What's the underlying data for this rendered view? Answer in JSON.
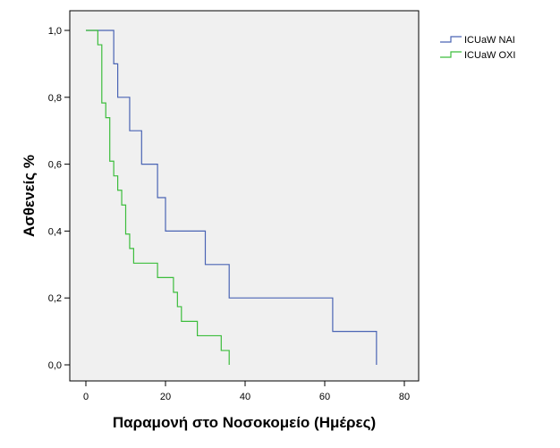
{
  "chart_data": {
    "type": "line",
    "step": true,
    "title": "",
    "xlabel": "Παραμονή στο Νοσοκομείο (Ημέρες)",
    "ylabel": "Ασθενείς %",
    "xlim": [
      0,
      80
    ],
    "ylim": [
      0,
      1
    ],
    "xticks": [
      0,
      20,
      40,
      60,
      80
    ],
    "xtick_labels": [
      "0",
      "20",
      "40",
      "60",
      "80"
    ],
    "yticks": [
      0.0,
      0.2,
      0.4,
      0.6,
      0.8,
      1.0
    ],
    "ytick_labels": [
      "0,0",
      "0,2",
      "0,4",
      "0,6",
      "0,8",
      "1,0"
    ],
    "grid": false,
    "legend_position": "top-right",
    "series": [
      {
        "name": "ICUaW NAI",
        "color": "#4a64b4",
        "x": [
          0,
          7,
          8,
          11,
          14,
          18,
          20,
          30,
          36,
          62,
          73
        ],
        "y": [
          1.0,
          0.9,
          0.8,
          0.7,
          0.6,
          0.5,
          0.4,
          0.3,
          0.2,
          0.1,
          0.0
        ]
      },
      {
        "name": "ICUaW ΟΧΙ",
        "color": "#3cbd3c",
        "x": [
          0,
          3,
          4,
          5,
          6,
          7,
          8,
          9,
          10,
          11,
          12,
          18,
          22,
          23,
          24,
          28,
          34,
          36
        ],
        "y": [
          1.0,
          0.957,
          0.783,
          0.739,
          0.609,
          0.565,
          0.522,
          0.478,
          0.391,
          0.348,
          0.304,
          0.261,
          0.217,
          0.174,
          0.13,
          0.087,
          0.043,
          0.0
        ]
      }
    ]
  }
}
